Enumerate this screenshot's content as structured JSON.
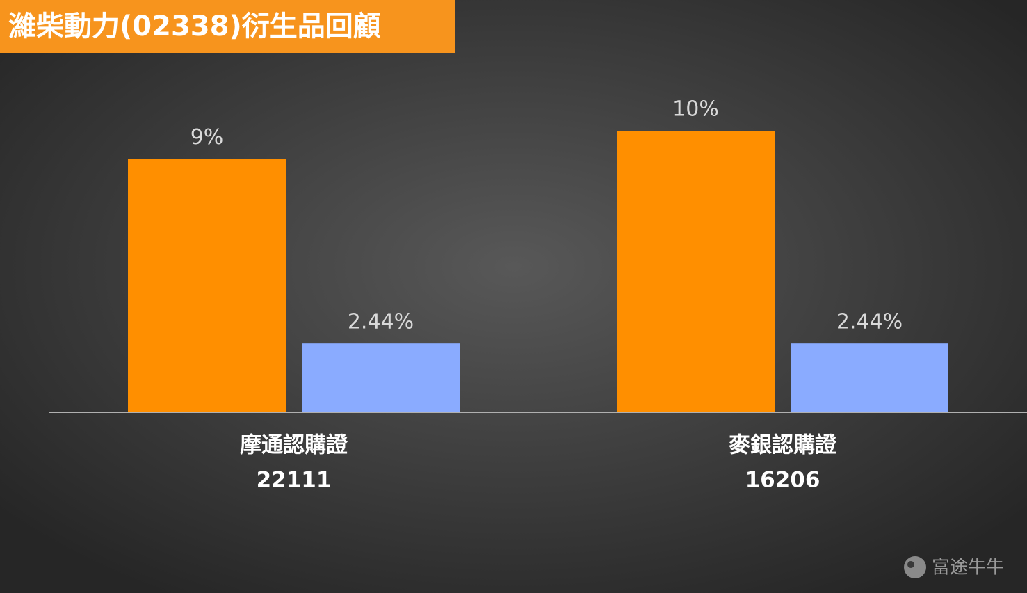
{
  "chart_data": {
    "type": "bar",
    "title": "濰柴動力(02338)衍生品回顧",
    "categories": [
      [
        "摩通認購證",
        "22111"
      ],
      [
        "麥銀認購證",
        "16206"
      ]
    ],
    "series": [
      {
        "color": "#ff8f00",
        "values": [
          9,
          10
        ],
        "value_labels": [
          "9%",
          "10%"
        ]
      },
      {
        "color": "#8aabff",
        "values": [
          2.44,
          2.44
        ],
        "value_labels": [
          "2.44%",
          "2.44%"
        ]
      }
    ],
    "ylim": [
      0,
      12
    ],
    "watermark": "富途牛牛"
  }
}
